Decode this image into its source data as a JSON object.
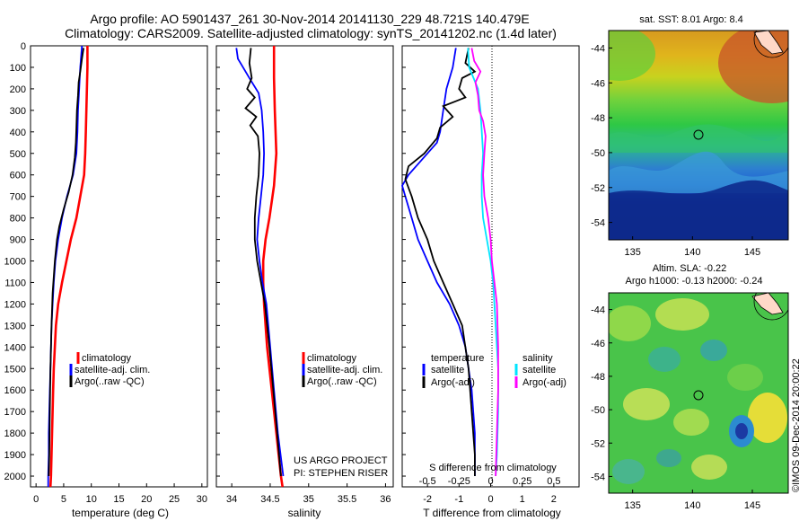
{
  "header": {
    "line1": "Argo profile: AO 5901437_261 30-Nov-2014 20141130_229 48.721S 140.479E",
    "line2": "Climatology: CARS2009. Satellite-adjusted climatology: synTS_20141202.nc (1.4d later)"
  },
  "colors": {
    "climatology": "#ff0000",
    "satellite": "#0000ff",
    "argo": "#000000",
    "sat_salinity": "#00e5ff",
    "argo_salinity": "#ff00ff"
  },
  "chart_data": [
    {
      "id": "temperature",
      "type": "line",
      "xlabel": "temperature (deg C)",
      "xlim": [
        -1,
        31
      ],
      "xticks": [
        "0",
        "5",
        "10",
        "15",
        "20",
        "25",
        "30"
      ],
      "ylim": [
        0,
        2050
      ],
      "yticks": [
        "0",
        "100",
        "200",
        "300",
        "400",
        "500",
        "600",
        "700",
        "800",
        "900",
        "1000",
        "1100",
        "1200",
        "1300",
        "1400",
        "1500",
        "1600",
        "1700",
        "1800",
        "1900",
        "2000"
      ],
      "legend": [
        "climatology",
        "satellite-adj. clim.",
        "Argo(..raw -QC)"
      ],
      "series": [
        {
          "name": "climatology",
          "color": "#ff0000",
          "points": [
            [
              9.3,
              0
            ],
            [
              9.3,
              100
            ],
            [
              9.2,
              200
            ],
            [
              9.1,
              300
            ],
            [
              9.0,
              400
            ],
            [
              8.9,
              500
            ],
            [
              8.7,
              600
            ],
            [
              8.0,
              700
            ],
            [
              7.3,
              800
            ],
            [
              6.3,
              900
            ],
            [
              5.5,
              1000
            ],
            [
              4.7,
              1100
            ],
            [
              4.0,
              1200
            ],
            [
              3.6,
              1300
            ],
            [
              3.4,
              1400
            ],
            [
              3.2,
              1500
            ],
            [
              3.1,
              1600
            ],
            [
              3.0,
              1700
            ],
            [
              2.9,
              1800
            ],
            [
              2.8,
              1900
            ],
            [
              2.7,
              2000
            ],
            [
              2.6,
              2050
            ]
          ]
        },
        {
          "name": "satellite-adj. clim.",
          "color": "#0000ff",
          "points": [
            [
              8.3,
              0
            ],
            [
              8.0,
              100
            ],
            [
              7.8,
              200
            ],
            [
              7.6,
              300
            ],
            [
              7.5,
              400
            ],
            [
              7.3,
              500
            ],
            [
              6.7,
              600
            ],
            [
              5.6,
              700
            ],
            [
              4.7,
              800
            ],
            [
              4.0,
              900
            ],
            [
              3.5,
              1000
            ],
            [
              3.2,
              1100
            ],
            [
              3.0,
              1200
            ],
            [
              2.8,
              1300
            ],
            [
              2.7,
              1400
            ],
            [
              2.6,
              1500
            ],
            [
              2.5,
              1600
            ],
            [
              2.4,
              1700
            ],
            [
              2.3,
              1800
            ],
            [
              2.3,
              1900
            ],
            [
              2.2,
              2000
            ],
            [
              2.2,
              2050
            ]
          ]
        },
        {
          "name": "Argo(..raw -QC)",
          "color": "#000000",
          "points": [
            [
              8.6,
              10
            ],
            [
              8.3,
              60
            ],
            [
              8.0,
              120
            ],
            [
              7.7,
              170
            ],
            [
              7.6,
              230
            ],
            [
              7.4,
              300
            ],
            [
              7.3,
              380
            ],
            [
              7.2,
              450
            ],
            [
              7.0,
              520
            ],
            [
              6.6,
              600
            ],
            [
              5.9,
              680
            ],
            [
              5.0,
              760
            ],
            [
              4.2,
              840
            ],
            [
              3.8,
              900
            ],
            [
              3.4,
              1000
            ],
            [
              3.0,
              1150
            ],
            [
              2.8,
              1300
            ],
            [
              2.6,
              1500
            ],
            [
              2.5,
              1700
            ],
            [
              2.4,
              1900
            ],
            [
              2.3,
              2000
            ]
          ]
        }
      ]
    },
    {
      "id": "salinity",
      "type": "line",
      "xlabel": "salinity",
      "xlim": [
        33.8,
        36.1
      ],
      "xticks": [
        "34",
        "34.5",
        "35",
        "35.5",
        "36"
      ],
      "ylim": [
        0,
        2050
      ],
      "legend": [
        "climatology",
        "satellite-adj. clim.",
        "Argo(..raw -QC)"
      ],
      "annotation": [
        "US ARGO PROJECT",
        "PI: STEPHEN RISER"
      ],
      "series": [
        {
          "name": "climatology",
          "color": "#ff0000",
          "points": [
            [
              34.55,
              0
            ],
            [
              34.55,
              150
            ],
            [
              34.56,
              300
            ],
            [
              34.58,
              500
            ],
            [
              34.55,
              650
            ],
            [
              34.49,
              800
            ],
            [
              34.44,
              900
            ],
            [
              34.41,
              1000
            ],
            [
              34.41,
              1100
            ],
            [
              34.42,
              1200
            ],
            [
              34.46,
              1400
            ],
            [
              34.52,
              1600
            ],
            [
              34.58,
              1800
            ],
            [
              34.64,
              2000
            ],
            [
              34.66,
              2050
            ]
          ]
        },
        {
          "name": "satellite-adj. clim.",
          "color": "#0000ff",
          "points": [
            [
              34.06,
              10
            ],
            [
              34.08,
              60
            ],
            [
              34.13,
              90
            ],
            [
              34.23,
              150
            ],
            [
              34.35,
              220
            ],
            [
              34.39,
              300
            ],
            [
              34.41,
              400
            ],
            [
              34.42,
              500
            ],
            [
              34.41,
              600
            ],
            [
              34.38,
              700
            ],
            [
              34.35,
              800
            ],
            [
              34.33,
              900
            ],
            [
              34.36,
              1000
            ],
            [
              34.4,
              1100
            ],
            [
              34.45,
              1200
            ],
            [
              34.5,
              1400
            ],
            [
              34.55,
              1600
            ],
            [
              34.6,
              1800
            ],
            [
              34.67,
              2000
            ]
          ]
        },
        {
          "name": "Argo(..raw -QC)",
          "color": "#000000",
          "points": [
            [
              34.25,
              10
            ],
            [
              34.23,
              80
            ],
            [
              34.26,
              150
            ],
            [
              34.2,
              200
            ],
            [
              34.3,
              240
            ],
            [
              34.18,
              290
            ],
            [
              34.32,
              330
            ],
            [
              34.24,
              370
            ],
            [
              34.34,
              420
            ],
            [
              34.36,
              500
            ],
            [
              34.35,
              600
            ],
            [
              34.32,
              700
            ],
            [
              34.3,
              800
            ],
            [
              34.3,
              900
            ],
            [
              34.33,
              1000
            ],
            [
              34.38,
              1100
            ],
            [
              34.43,
              1200
            ],
            [
              34.49,
              1400
            ],
            [
              34.54,
              1600
            ],
            [
              34.59,
              1800
            ],
            [
              34.64,
              2000
            ]
          ]
        }
      ]
    },
    {
      "id": "difference",
      "type": "line",
      "xlabel": "T difference from climatology",
      "xlabel_top": "S difference from climatology",
      "xlim": [
        -2.8,
        2.8
      ],
      "xticks": [
        "-2",
        "-1",
        "0",
        "1",
        "2"
      ],
      "xticks_s": [
        "-0.5",
        "-0.25",
        "0",
        "0.25",
        "0.5"
      ],
      "ylim": [
        0,
        2050
      ],
      "legend": {
        "temperature_title": "temperature",
        "temperature": [
          "satellite",
          "Argo(-adj)"
        ],
        "salinity_title": "salinity",
        "salinity": [
          "satellite",
          "Argo(-adj)"
        ]
      },
      "series": [
        {
          "name": "satellite",
          "color": "#0000ff",
          "points": [
            [
              -1.1,
              10
            ],
            [
              -1.2,
              100
            ],
            [
              -1.4,
              200
            ],
            [
              -1.5,
              300
            ],
            [
              -1.6,
              400
            ],
            [
              -1.7,
              450
            ],
            [
              -2.0,
              500
            ],
            [
              -2.3,
              550
            ],
            [
              -2.6,
              600
            ],
            [
              -2.8,
              650
            ],
            [
              -2.7,
              700
            ],
            [
              -2.5,
              800
            ],
            [
              -2.3,
              900
            ],
            [
              -2.0,
              1000
            ],
            [
              -1.7,
              1100
            ],
            [
              -1.3,
              1200
            ],
            [
              -1.0,
              1300
            ],
            [
              -0.8,
              1400
            ],
            [
              -0.6,
              1600
            ],
            [
              -0.5,
              1800
            ],
            [
              -0.5,
              2000
            ]
          ]
        },
        {
          "name": "Argo(-adj)",
          "color": "#000000",
          "points": [
            [
              -0.7,
              10
            ],
            [
              -0.8,
              80
            ],
            [
              -0.5,
              120
            ],
            [
              -0.9,
              150
            ],
            [
              -1.0,
              200
            ],
            [
              -0.8,
              240
            ],
            [
              -1.5,
              280
            ],
            [
              -1.2,
              330
            ],
            [
              -1.6,
              380
            ],
            [
              -1.7,
              430
            ],
            [
              -2.1,
              500
            ],
            [
              -2.6,
              560
            ],
            [
              -2.7,
              620
            ],
            [
              -2.5,
              700
            ],
            [
              -2.3,
              800
            ],
            [
              -2.0,
              900
            ],
            [
              -1.8,
              1000
            ],
            [
              -1.5,
              1100
            ],
            [
              -1.2,
              1200
            ],
            [
              -0.9,
              1300
            ],
            [
              -0.7,
              1500
            ],
            [
              -0.6,
              1700
            ],
            [
              -0.5,
              1900
            ],
            [
              -0.5,
              2000
            ]
          ]
        },
        {
          "name": "satellite (salinity)",
          "color": "#00e5ff",
          "points": [
            [
              -0.18,
              10
            ],
            [
              -0.17,
              100
            ],
            [
              -0.1,
              200
            ],
            [
              -0.08,
              300
            ],
            [
              -0.06,
              500
            ],
            [
              -0.07,
              600
            ],
            [
              -0.07,
              700
            ],
            [
              -0.06,
              800
            ],
            [
              -0.03,
              900
            ],
            [
              0.0,
              1000
            ],
            [
              0.02,
              1100
            ],
            [
              0.04,
              1300
            ],
            [
              0.06,
              1500
            ],
            [
              0.06,
              1700
            ],
            [
              0.05,
              1900
            ],
            [
              0.04,
              2000
            ]
          ]
        },
        {
          "name": "Argo(-adj) (salinity)",
          "color": "#ff00ff",
          "points": [
            [
              -0.15,
              10
            ],
            [
              -0.13,
              70
            ],
            [
              -0.08,
              120
            ],
            [
              -0.12,
              170
            ],
            [
              -0.1,
              230
            ],
            [
              -0.09,
              300
            ],
            [
              -0.06,
              350
            ],
            [
              -0.04,
              420
            ],
            [
              -0.05,
              500
            ],
            [
              -0.06,
              600
            ],
            [
              -0.05,
              700
            ],
            [
              -0.02,
              800
            ],
            [
              0.0,
              900
            ],
            [
              0.01,
              1000
            ],
            [
              0.03,
              1100
            ],
            [
              0.05,
              1200
            ],
            [
              0.06,
              1400
            ],
            [
              0.06,
              1600
            ],
            [
              0.05,
              1800
            ],
            [
              0.04,
              2000
            ]
          ]
        }
      ]
    },
    {
      "id": "sst_map",
      "type": "heatmap",
      "title": "sat. SST: 8.01  Argo: 8.4",
      "xticks": [
        "135",
        "140",
        "145"
      ],
      "yticks": [
        "-44",
        "-46",
        "-48",
        "-50",
        "-52",
        "-54"
      ],
      "xlim": [
        133,
        148
      ],
      "ylim": [
        -55,
        -43
      ],
      "marker": [
        140.479,
        -48.721
      ]
    },
    {
      "id": "sla_map",
      "type": "heatmap",
      "title_line1": "Altim. SLA: -0.22",
      "title_line2": "Argo h1000: -0.13  h2000: -0.24",
      "xticks": [
        "135",
        "140",
        "145"
      ],
      "yticks": [
        "-44",
        "-46",
        "-48",
        "-50",
        "-52",
        "-54"
      ],
      "xlim": [
        133,
        148
      ],
      "ylim": [
        -55,
        -43
      ],
      "marker": [
        140.479,
        -48.721
      ]
    }
  ],
  "credit": "©IMOS 09-Dec-2014 20:00:22"
}
